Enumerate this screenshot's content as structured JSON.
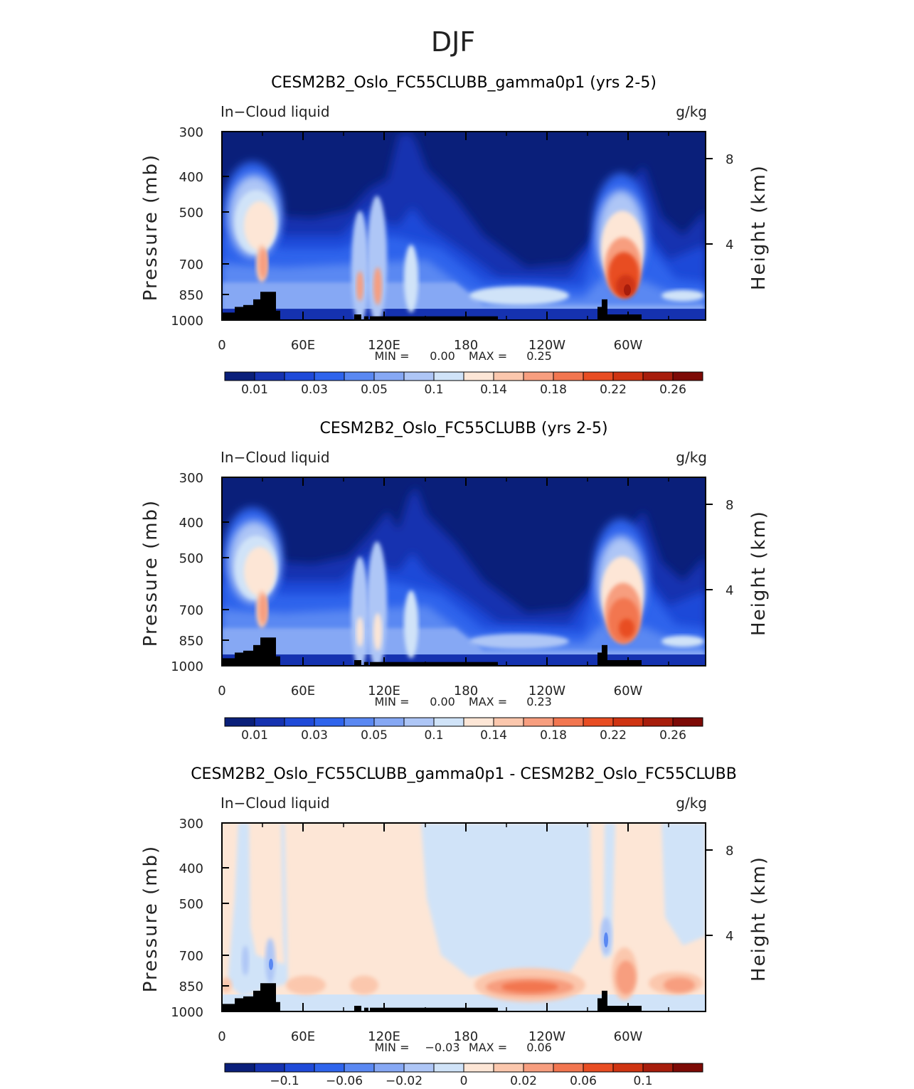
{
  "page_title": "DJF",
  "chart_data": [
    {
      "type": "heatmap",
      "title": "CESM2B2_Oslo_FC55CLUBB_gamma0p1 (yrs 2-5)",
      "left_label": "In−Cloud liquid",
      "units": "g/kg",
      "ylabel": "Pressure (mb)",
      "ylabel_right": "Height (km)",
      "y_ticks": [
        "300",
        "400",
        "500",
        "700",
        "850",
        "1000"
      ],
      "y_ticks_right": [
        "8",
        "4"
      ],
      "x_ticks": [
        "0",
        "60E",
        "120E",
        "180",
        "120W",
        "60W"
      ],
      "stats": {
        "min_label": "MIN =",
        "min": "0.00",
        "max_label": "MAX =",
        "max": "0.25"
      },
      "colorbar_labels": [
        "0.01",
        "0.03",
        "0.05",
        "0.1",
        "0.14",
        "0.18",
        "0.22",
        "0.26"
      ],
      "levels": [
        0.01,
        0.02,
        0.03,
        0.04,
        0.05,
        0.07,
        0.1,
        0.12,
        0.14,
        0.16,
        0.18,
        0.2,
        0.22,
        0.24,
        0.26
      ],
      "colors": [
        "#0a1f7a",
        "#1532b0",
        "#1f4ad8",
        "#2f64ec",
        "#5a88f2",
        "#86a8f4",
        "#aec6f6",
        "#d0e3f8",
        "#fde6d6",
        "#fbc7ad",
        "#f79e7f",
        "#f27650",
        "#e84d23",
        "#cf3412",
        "#a71d0c",
        "#7d0a06"
      ]
    },
    {
      "type": "heatmap",
      "title": "CESM2B2_Oslo_FC55CLUBB (yrs 2-5)",
      "left_label": "In−Cloud liquid",
      "units": "g/kg",
      "ylabel": "Pressure (mb)",
      "ylabel_right": "Height (km)",
      "y_ticks": [
        "300",
        "400",
        "500",
        "700",
        "850",
        "1000"
      ],
      "y_ticks_right": [
        "8",
        "4"
      ],
      "x_ticks": [
        "0",
        "60E",
        "120E",
        "180",
        "120W",
        "60W"
      ],
      "stats": {
        "min_label": "MIN =",
        "min": "0.00",
        "max_label": "MAX =",
        "max": "0.23"
      },
      "colorbar_labels": [
        "0.01",
        "0.03",
        "0.05",
        "0.1",
        "0.14",
        "0.18",
        "0.22",
        "0.26"
      ],
      "levels": [
        0.01,
        0.02,
        0.03,
        0.04,
        0.05,
        0.07,
        0.1,
        0.12,
        0.14,
        0.16,
        0.18,
        0.2,
        0.22,
        0.24,
        0.26
      ],
      "colors": [
        "#0a1f7a",
        "#1532b0",
        "#1f4ad8",
        "#2f64ec",
        "#5a88f2",
        "#86a8f4",
        "#aec6f6",
        "#d0e3f8",
        "#fde6d6",
        "#fbc7ad",
        "#f79e7f",
        "#f27650",
        "#e84d23",
        "#cf3412",
        "#a71d0c",
        "#7d0a06"
      ]
    },
    {
      "type": "heatmap",
      "title": "CESM2B2_Oslo_FC55CLUBB_gamma0p1 - CESM2B2_Oslo_FC55CLUBB",
      "left_label": "In−Cloud liquid",
      "units": "g/kg",
      "ylabel": "Pressure (mb)",
      "ylabel_right": "Height (km)",
      "y_ticks": [
        "300",
        "400",
        "500",
        "700",
        "850",
        "1000"
      ],
      "y_ticks_right": [
        "8",
        "4"
      ],
      "x_ticks": [
        "0",
        "60E",
        "120E",
        "180",
        "120W",
        "60W"
      ],
      "stats": {
        "min_label": "MIN =",
        "min": "−0.03",
        "max_label": "MAX =",
        "max": "0.06"
      },
      "colorbar_labels": [
        "−0.1",
        "−0.06",
        "−0.02",
        "0",
        "0.02",
        "0.06",
        "0.1"
      ],
      "colors": [
        "#0a1f7a",
        "#1532b0",
        "#1f4ad8",
        "#2f64ec",
        "#5a88f2",
        "#86a8f4",
        "#aec6f6",
        "#d0e3f8",
        "#fde6d6",
        "#fbc7ad",
        "#f79e7f",
        "#f27650",
        "#e84d23",
        "#cf3412",
        "#a71d0c",
        "#7d0a06"
      ]
    }
  ]
}
